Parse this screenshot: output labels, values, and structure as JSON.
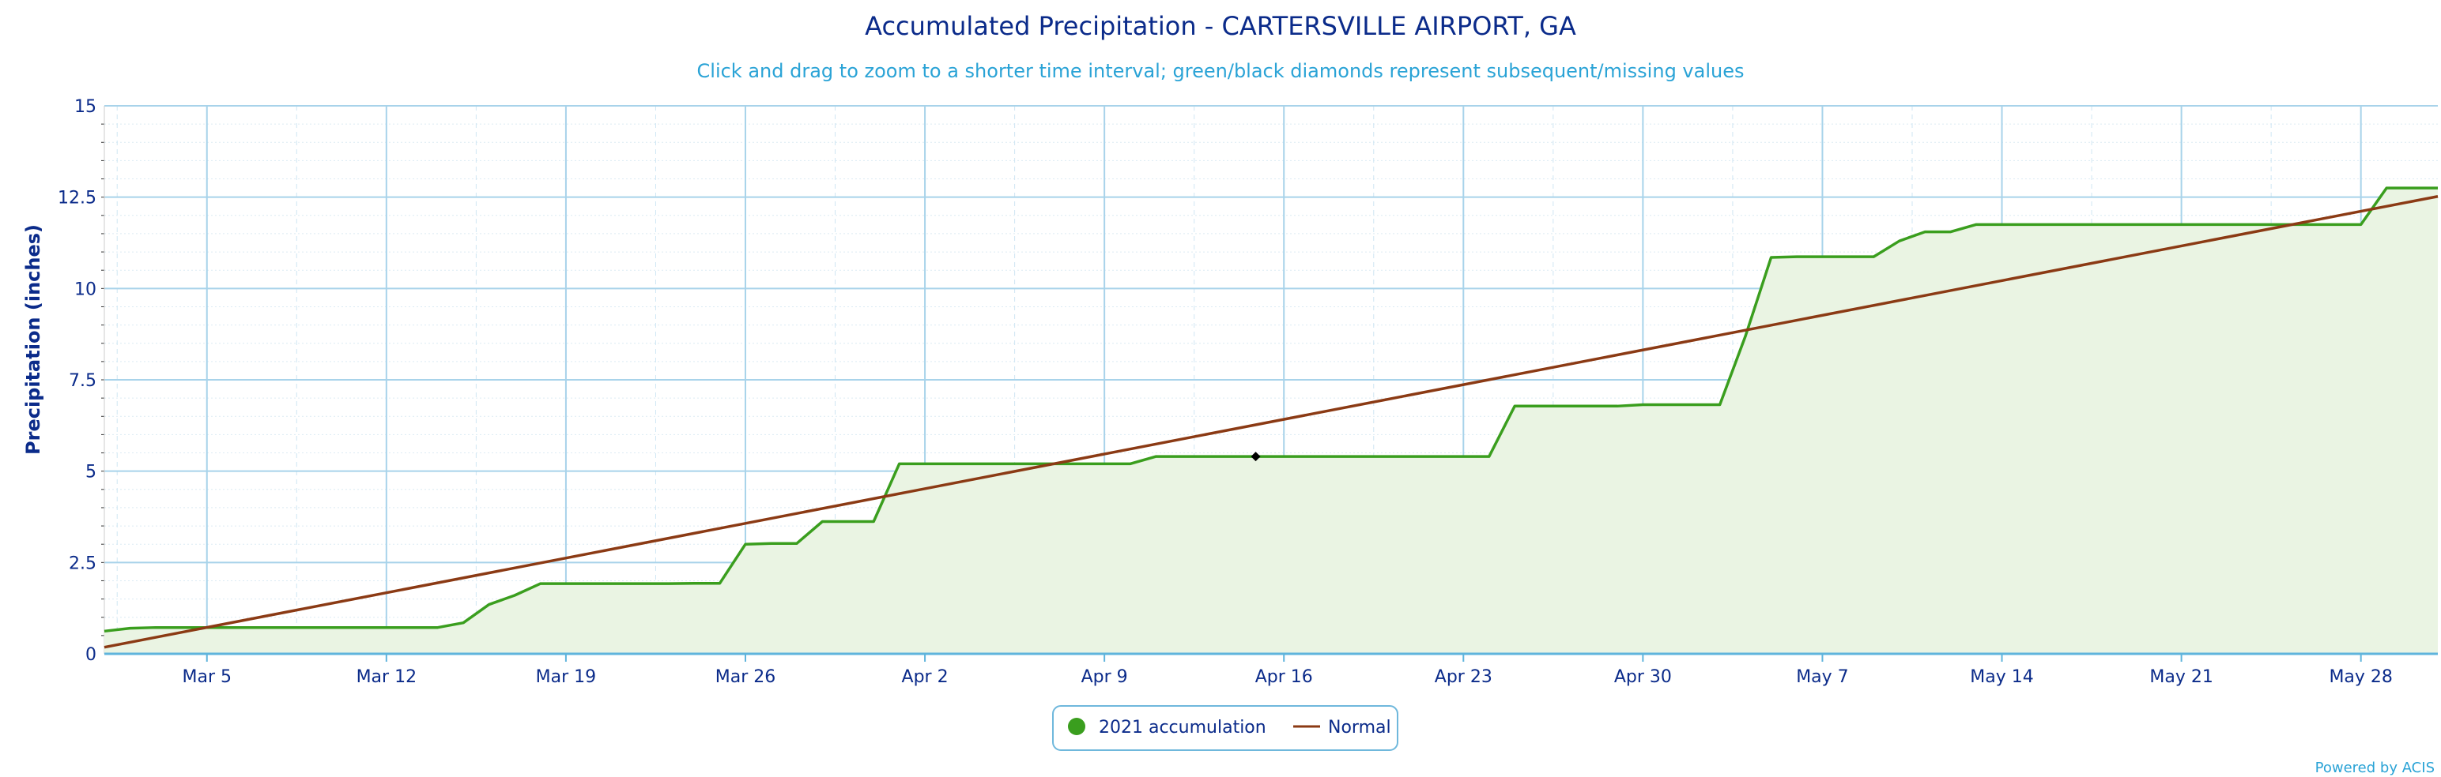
{
  "chart_data": {
    "type": "line",
    "title": "Accumulated Precipitation - CARTERSVILLE AIRPORT, GA",
    "subtitle": "Click and drag to zoom to a shorter time interval; green/black diamonds represent subsequent/missing values",
    "ylabel": "Precipitation (inches)",
    "xlabel": "",
    "ylim": [
      0,
      15
    ],
    "yticks": [
      0,
      2.5,
      5,
      7.5,
      10,
      12.5,
      15
    ],
    "ytick_labels": [
      "0",
      "2.5",
      "5",
      "7.5",
      "10",
      "12.5",
      "15"
    ],
    "xlim": [
      1,
      92
    ],
    "xticks": [
      {
        "day": 5,
        "label": "Mar 5"
      },
      {
        "day": 12,
        "label": "Mar 12"
      },
      {
        "day": 19,
        "label": "Mar 19"
      },
      {
        "day": 26,
        "label": "Mar 26"
      },
      {
        "day": 33,
        "label": "Apr 2"
      },
      {
        "day": 40,
        "label": "Apr 9"
      },
      {
        "day": 47,
        "label": "Apr 16"
      },
      {
        "day": 54,
        "label": "Apr 23"
      },
      {
        "day": 61,
        "label": "Apr 30"
      },
      {
        "day": 68,
        "label": "May 7"
      },
      {
        "day": 75,
        "label": "May 14"
      },
      {
        "day": 82,
        "label": "May 21"
      },
      {
        "day": 89,
        "label": "May 28"
      }
    ],
    "grid": true,
    "legend_position": "bottom-center",
    "series": [
      {
        "name": "2021 accumulation",
        "color": "#3a9e1e",
        "fill": "#eaf4e3",
        "marker": "circle",
        "x": [
          1,
          2,
          3,
          4,
          5,
          6,
          7,
          8,
          9,
          10,
          11,
          12,
          13,
          14,
          15,
          16,
          17,
          18,
          19,
          20,
          21,
          22,
          23,
          24,
          25,
          26,
          27,
          28,
          29,
          30,
          31,
          32,
          33,
          34,
          35,
          36,
          37,
          38,
          39,
          40,
          41,
          42,
          43,
          44,
          45,
          46,
          47,
          48,
          49,
          50,
          51,
          52,
          53,
          54,
          55,
          56,
          57,
          58,
          59,
          60,
          61,
          62,
          63,
          64,
          65,
          66,
          67,
          68,
          69,
          70,
          71,
          72,
          73,
          74,
          75,
          76,
          77,
          78,
          79,
          80,
          81,
          82,
          83,
          84,
          85,
          86,
          87,
          88,
          89,
          90,
          91,
          92
        ],
        "y": [
          0.62,
          0.7,
          0.72,
          0.72,
          0.72,
          0.72,
          0.72,
          0.72,
          0.72,
          0.72,
          0.72,
          0.72,
          0.72,
          0.72,
          0.85,
          1.35,
          1.6,
          1.92,
          1.92,
          1.92,
          1.92,
          1.92,
          1.92,
          1.93,
          1.93,
          3.0,
          3.02,
          3.02,
          3.62,
          3.62,
          3.62,
          5.2,
          5.2,
          5.2,
          5.2,
          5.2,
          5.2,
          5.2,
          5.2,
          5.2,
          5.2,
          5.4,
          5.4,
          5.4,
          5.4,
          5.4,
          5.4,
          5.4,
          5.4,
          5.4,
          5.4,
          5.4,
          5.4,
          5.4,
          5.4,
          6.78,
          6.78,
          6.78,
          6.78,
          6.78,
          6.82,
          6.82,
          6.82,
          6.82,
          8.7,
          10.85,
          10.87,
          10.87,
          10.87,
          10.87,
          11.3,
          11.55,
          11.55,
          11.75,
          11.75,
          11.75,
          11.75,
          11.75,
          11.75,
          11.75,
          11.75,
          11.75,
          11.75,
          11.75,
          11.75,
          11.75,
          11.75,
          11.75,
          11.75,
          12.75,
          12.75,
          12.75
        ]
      },
      {
        "name": "Normal",
        "color": "#8b3a14",
        "x": [
          1,
          92
        ],
        "y": [
          0.18,
          12.52
        ]
      }
    ],
    "missing_markers": [
      {
        "x": 45.9,
        "y": 5.4,
        "color": "#000000"
      }
    ]
  },
  "credit": "Powered by ACIS"
}
